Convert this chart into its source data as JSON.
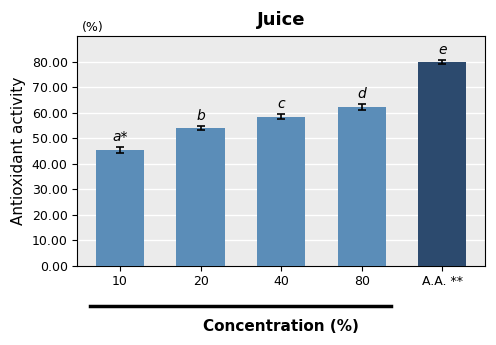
{
  "title": "Juice",
  "xlabel": "Concentration (%)",
  "ylabel": "Antioxidant activity",
  "ylabel_unit": "(%)",
  "categories": [
    "10",
    "20",
    "40",
    "80",
    "A.A. **"
  ],
  "values": [
    45.5,
    54.0,
    58.5,
    62.2,
    79.8
  ],
  "errors": [
    1.2,
    0.6,
    0.9,
    1.1,
    0.7
  ],
  "bar_colors": [
    "#5b8db8",
    "#5b8db8",
    "#5b8db8",
    "#5b8db8",
    "#2c4a6e"
  ],
  "error_color": "#000000",
  "ylim": [
    0,
    90
  ],
  "yticks": [
    0,
    10,
    20,
    30,
    40,
    50,
    60,
    70,
    80
  ],
  "ytick_labels": [
    "0.00",
    "10.00",
    "20.00",
    "30.00",
    "40.00",
    "50.00",
    "60.00",
    "70.00",
    "80.00"
  ],
  "letters": [
    "a*",
    "b",
    "c",
    "d",
    "e"
  ],
  "fig_bg_color": "#ffffff",
  "plot_bg_color": "#ebebeb",
  "grid_color": "#ffffff",
  "title_fontsize": 13,
  "axis_label_fontsize": 11,
  "tick_fontsize": 9,
  "letter_fontsize": 10,
  "bar_width": 0.6
}
